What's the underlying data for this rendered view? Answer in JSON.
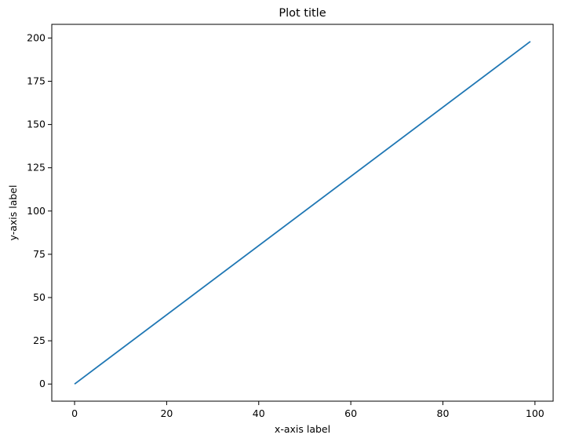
{
  "chart_data": {
    "type": "line",
    "title": "Plot title",
    "xlabel": "x-axis label",
    "ylabel": "y-axis label",
    "xlim": [
      -4.95,
      103.95
    ],
    "ylim": [
      -9.9,
      207.9
    ],
    "xticks": [
      0,
      20,
      40,
      60,
      80,
      100
    ],
    "yticks": [
      0,
      25,
      50,
      75,
      100,
      125,
      150,
      175,
      200
    ],
    "grid": false,
    "series": [
      {
        "color": "#1f77b4",
        "x": [
          0,
          99
        ],
        "y": [
          0,
          198
        ]
      }
    ]
  }
}
